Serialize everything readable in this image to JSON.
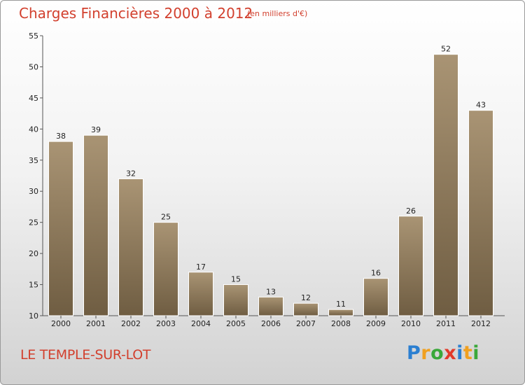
{
  "title": "Charges Financières 2000 à 2012",
  "subtitle": "(en milliers d'€)",
  "commune": "LE TEMPLE-SUR-LOT",
  "logo": {
    "letters": [
      "P",
      "r",
      "o",
      "x",
      "i",
      "t",
      "i"
    ],
    "colors": [
      "#2b7fd1",
      "#f0a020",
      "#3aa83a",
      "#e23a2a",
      "#2b7fd1",
      "#f0a020",
      "#3aa83a"
    ]
  },
  "colors": {
    "accent": "#d2402e",
    "bar_top": "#a99474",
    "bar_bottom": "#6f5d42"
  },
  "chart_data": {
    "type": "bar",
    "categories": [
      "2000",
      "2001",
      "2002",
      "2003",
      "2004",
      "2005",
      "2006",
      "2007",
      "2008",
      "2009",
      "2010",
      "2011",
      "2012"
    ],
    "values": [
      38,
      39,
      32,
      25,
      17,
      15,
      13,
      12,
      11,
      16,
      26,
      52,
      43
    ],
    "ylim": [
      10,
      55
    ],
    "yticks": [
      10,
      15,
      20,
      25,
      30,
      35,
      40,
      45,
      50,
      55
    ],
    "grid": false,
    "legend": "none"
  }
}
